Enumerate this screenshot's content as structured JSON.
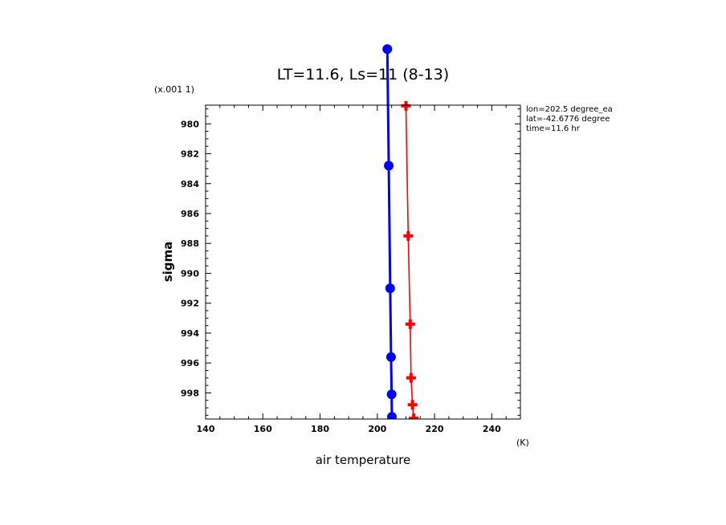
{
  "chart_data": {
    "type": "line",
    "title": "LT=11.6, Ls=11 (8-13)",
    "xlabel": "air temperature",
    "x_unit": "(K)",
    "ylabel": "sigma",
    "y_scale_label": "(x.001 1)",
    "xlim": [
      140,
      250
    ],
    "ylim": [
      999.75,
      978.75
    ],
    "y_inverted": true,
    "x_ticks": [
      140,
      160,
      180,
      200,
      220,
      240
    ],
    "y_ticks": [
      980,
      982,
      984,
      986,
      988,
      990,
      992,
      994,
      996,
      998
    ],
    "grid": false,
    "info_lines": [
      "lon=202.5 degree_ea",
      "lat=-42.6776 degree",
      "time=11.6 hr"
    ],
    "series": [
      {
        "color": "#0000ff",
        "marker": "circle",
        "x": [
          203.5,
          204.0,
          204.5,
          204.8,
          205.0,
          205.1
        ],
        "y": [
          975.0,
          982.8,
          991.0,
          995.6,
          998.1,
          999.6
        ]
      },
      {
        "color": "#ff0000",
        "marker": "plus",
        "x": [
          210.0,
          210.8,
          211.5,
          211.8,
          212.3,
          212.7
        ],
        "y": [
          978.8,
          987.5,
          993.4,
          997.0,
          998.8,
          999.7
        ]
      }
    ]
  }
}
